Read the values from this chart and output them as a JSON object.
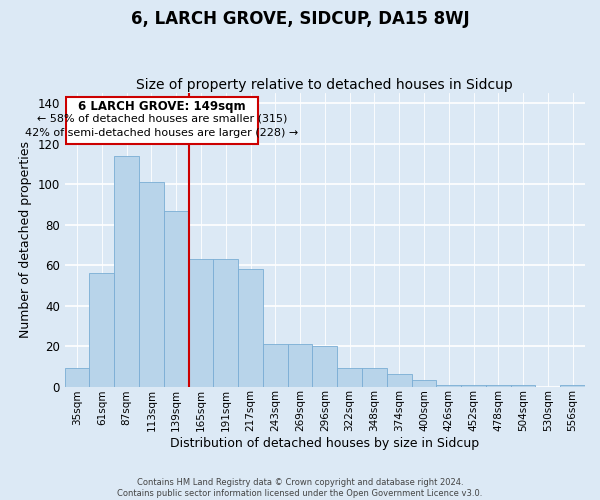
{
  "title": "6, LARCH GROVE, SIDCUP, DA15 8WJ",
  "subtitle": "Size of property relative to detached houses in Sidcup",
  "xlabel": "Distribution of detached houses by size in Sidcup",
  "ylabel": "Number of detached properties",
  "footer_line1": "Contains HM Land Registry data © Crown copyright and database right 2024.",
  "footer_line2": "Contains public sector information licensed under the Open Government Licence v3.0.",
  "categories": [
    "35sqm",
    "61sqm",
    "87sqm",
    "113sqm",
    "139sqm",
    "165sqm",
    "191sqm",
    "217sqm",
    "243sqm",
    "269sqm",
    "296sqm",
    "322sqm",
    "348sqm",
    "374sqm",
    "400sqm",
    "426sqm",
    "452sqm",
    "478sqm",
    "504sqm",
    "530sqm",
    "556sqm"
  ],
  "values": [
    9,
    56,
    114,
    101,
    87,
    63,
    63,
    58,
    21,
    21,
    20,
    9,
    9,
    6,
    3,
    1,
    1,
    1,
    1,
    0,
    1
  ],
  "bar_color": "#b8d4ea",
  "bar_edge_color": "#7aadd4",
  "vline_index": 4,
  "vline_color": "#cc0000",
  "annotation_title": "6 LARCH GROVE: 149sqm",
  "annotation_line1": "← 58% of detached houses are smaller (315)",
  "annotation_line2": "42% of semi-detached houses are larger (228) →",
  "annotation_box_facecolor": "#ffffff",
  "annotation_box_edgecolor": "#cc0000",
  "ylim": [
    0,
    145
  ],
  "yticks": [
    0,
    20,
    40,
    60,
    80,
    100,
    120,
    140
  ],
  "bg_color": "#dce9f5",
  "grid_color": "#ffffff",
  "title_fontsize": 12,
  "subtitle_fontsize": 10
}
